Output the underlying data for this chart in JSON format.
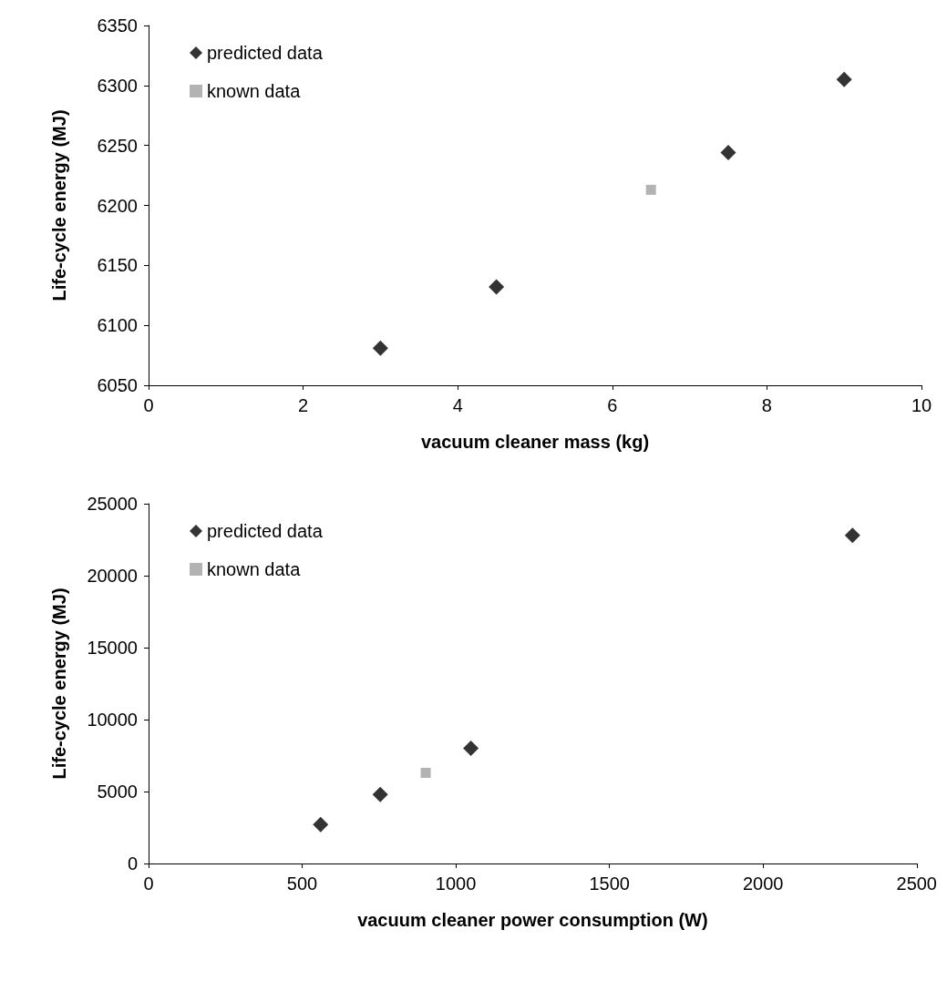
{
  "chart_data": [
    {
      "type": "scatter",
      "xlabel": "vacuum cleaner mass (kg)",
      "ylabel": "Life-cycle energy (MJ)",
      "xlim": [
        0,
        10
      ],
      "xticks": [
        0,
        2,
        4,
        6,
        8,
        10
      ],
      "ylim": [
        6050,
        6350
      ],
      "yticks": [
        6050,
        6100,
        6150,
        6200,
        6250,
        6300,
        6350
      ],
      "grid": false,
      "legend": "top left",
      "series": [
        {
          "name": "predicted data",
          "color": "#000000",
          "marker": "diamond",
          "x": [
            3,
            4.5,
            7.5,
            9
          ],
          "values": [
            6081,
            6132,
            6244,
            6305
          ]
        },
        {
          "name": "known data",
          "color": "#a0a0a0",
          "marker": "square",
          "x": [
            6.5
          ],
          "values": [
            6213
          ]
        }
      ]
    },
    {
      "type": "scatter",
      "xlabel": "vacuum cleaner power consumption (W)",
      "ylabel": "Life-cycle energy (MJ)",
      "xlim": [
        0,
        2500
      ],
      "xticks": [
        0,
        500,
        1000,
        1500,
        2000,
        2500
      ],
      "ylim": [
        0,
        25000
      ],
      "yticks": [
        0,
        5000,
        10000,
        15000,
        20000,
        25000
      ],
      "grid": false,
      "legend": "top left",
      "series": [
        {
          "name": "predicted data",
          "color": "#000000",
          "marker": "diamond",
          "x": [
            560,
            754,
            1049,
            2291
          ],
          "values": [
            2700,
            4800,
            8000,
            22800
          ]
        },
        {
          "name": "known data",
          "color": "#a0a0a0",
          "marker": "square",
          "x": [
            902
          ],
          "values": [
            6300
          ]
        }
      ]
    }
  ]
}
